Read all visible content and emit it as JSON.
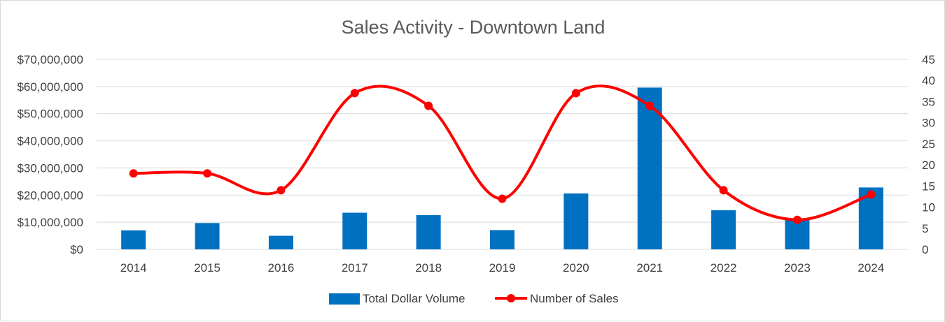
{
  "chart_data": {
    "type": "bar",
    "title": "Sales Activity - Downtown Land",
    "categories": [
      "2014",
      "2015",
      "2016",
      "2017",
      "2018",
      "2019",
      "2020",
      "2021",
      "2022",
      "2023",
      "2024"
    ],
    "series": [
      {
        "name": "Total Dollar Volume",
        "type": "bar",
        "axis": "left",
        "color": "#0070C0",
        "values": [
          7000000,
          9700000,
          5000000,
          13500000,
          12600000,
          7100000,
          20600000,
          59600000,
          14400000,
          11000000,
          22800000
        ]
      },
      {
        "name": "Number of Sales",
        "type": "line",
        "axis": "right",
        "smooth": true,
        "markers": true,
        "color": "#FF0000",
        "values": [
          18,
          18,
          14,
          37,
          34,
          12,
          37,
          34,
          14,
          7,
          13
        ]
      }
    ],
    "y_left": {
      "min": 0,
      "max": 70000000,
      "step": 10000000,
      "tick_labels": [
        "$0",
        "$10,000,000",
        "$20,000,000",
        "$30,000,000",
        "$40,000,000",
        "$50,000,000",
        "$60,000,000",
        "$70,000,000"
      ]
    },
    "y_right": {
      "min": 0,
      "max": 45,
      "step": 5,
      "tick_labels": [
        "0",
        "5",
        "10",
        "15",
        "20",
        "25",
        "30",
        "35",
        "40",
        "45"
      ]
    },
    "grid": true,
    "legend_position": "bottom"
  },
  "legend": {
    "bar_label": "Total Dollar Volume",
    "line_label": "Number of Sales"
  }
}
